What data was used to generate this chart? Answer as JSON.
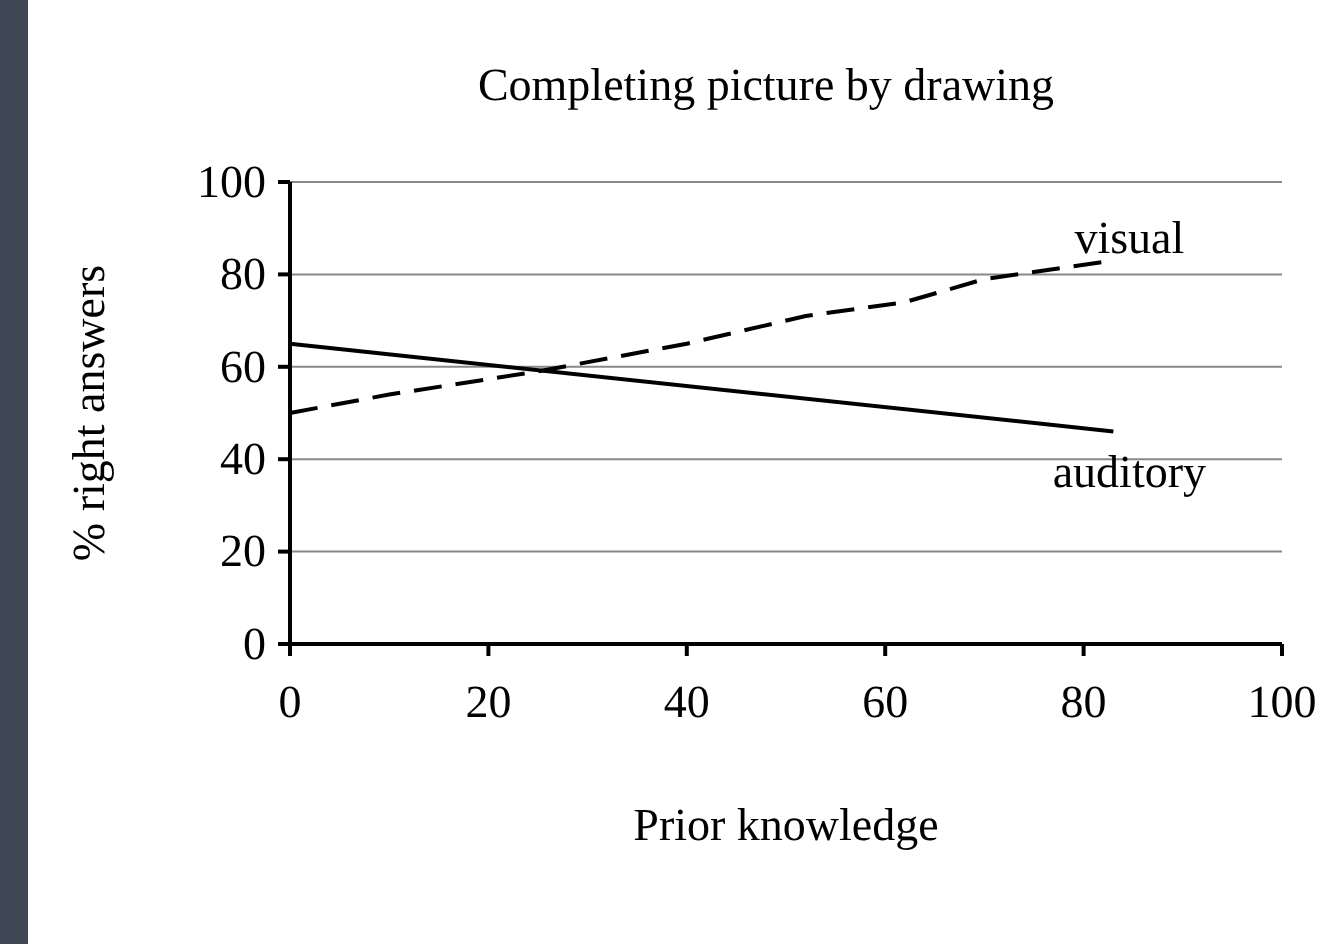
{
  "chart_data": {
    "type": "line",
    "title": "Completing picture by drawing",
    "xlabel": "Prior knowledge",
    "ylabel": "% right answers",
    "xlim": [
      0,
      100
    ],
    "xticks": [
      0,
      20,
      40,
      60,
      80,
      100
    ],
    "ylim": [
      0,
      100
    ],
    "yticks": [
      0,
      20,
      40,
      60,
      80,
      100
    ],
    "grid": "y",
    "marker": "none",
    "series": [
      {
        "name": "visual",
        "color": "#000000",
        "line_style": "dashed",
        "x": [
          0,
          10,
          25,
          40,
          52,
          62,
          70,
          83
        ],
        "values": [
          50,
          54,
          59,
          65,
          71,
          74,
          79,
          83
        ]
      },
      {
        "name": "auditory",
        "color": "#000000",
        "line_style": "solid",
        "x": [
          0,
          83
        ],
        "values": [
          65,
          46
        ]
      }
    ]
  }
}
